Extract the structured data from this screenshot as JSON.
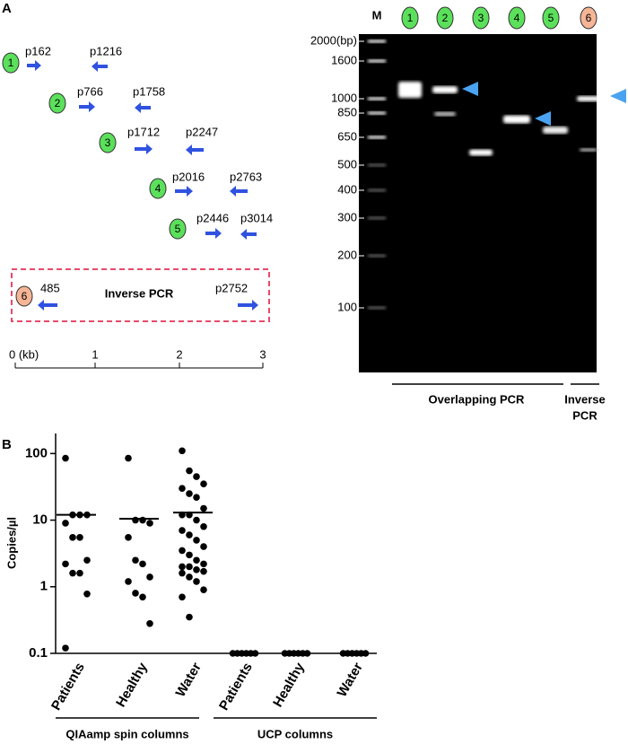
{
  "panel_a": {
    "letter": "A",
    "rows": [
      {
        "number": "1",
        "forward": "p162",
        "reverse": "p1216"
      },
      {
        "number": "2",
        "forward": "p766",
        "reverse": "p1758"
      },
      {
        "number": "3",
        "forward": "p1712",
        "reverse": "p2247"
      },
      {
        "number": "4",
        "forward": "p2016",
        "reverse": "p2763"
      },
      {
        "number": "5",
        "forward": "p2446",
        "reverse": "p3014"
      }
    ],
    "inverse": {
      "number": "6",
      "left": "485",
      "title": "Inverse PCR",
      "right": "p2752"
    },
    "scale": [
      "0 (kb)",
      "1",
      "2",
      "3"
    ],
    "gel": {
      "lanes": [
        "M",
        "1",
        "2",
        "3",
        "4",
        "5",
        "6"
      ],
      "markers": [
        "2000(bp)",
        "1600",
        "1000",
        "850",
        "650",
        "500",
        "400",
        "300",
        "200",
        "100"
      ],
      "overlapping_label": "Overlapping PCR",
      "inverse_label_lines": [
        "Inverse",
        "PCR"
      ]
    }
  },
  "chart_data": {
    "type": "dot",
    "letter": "B",
    "y_label": "Copies/µl",
    "categories": [
      "Patients",
      "Healthy",
      "Water",
      "Patients",
      "Healthy",
      "Water"
    ],
    "groups": [
      "QIAamp spin columns",
      "UCP columns"
    ],
    "values": [
      [
        85,
        12,
        12,
        12,
        9,
        5.5,
        5.5,
        2.5,
        2.2,
        1.6,
        1.6,
        0.78,
        0.12
      ],
      [
        85,
        10,
        10,
        9,
        5.5,
        2.5,
        2.2,
        1.4,
        1.2,
        0.8,
        0.7,
        0.28
      ],
      [
        110,
        55,
        45,
        35,
        30,
        25,
        22,
        15,
        12,
        12,
        10,
        8,
        7,
        6,
        5,
        4,
        3.5,
        3,
        2.5,
        2.2,
        2,
        2,
        1.8,
        1.7,
        1.6,
        1.4,
        1.2,
        0.9,
        0.7,
        0.35
      ],
      [
        0.1,
        0.1,
        0.1,
        0.1,
        0.1,
        0.1
      ],
      [
        0.1,
        0.1,
        0.1,
        0.1,
        0.1,
        0.1
      ],
      [
        0.1,
        0.1,
        0.1,
        0.1,
        0.1,
        0.1
      ]
    ],
    "means": [
      12,
      10.5,
      13,
      null,
      null,
      null
    ],
    "log_scale": true,
    "ylim": [
      0.1,
      200
    ],
    "yticks": [
      0.1,
      1,
      10,
      100
    ],
    "color": "#000000"
  }
}
